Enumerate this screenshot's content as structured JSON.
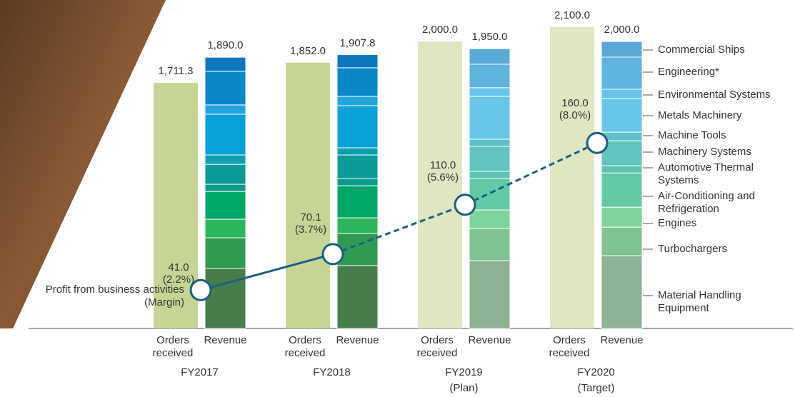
{
  "chart_data": {
    "type": "bar",
    "categories": [
      "FY2017",
      "FY2018",
      "FY2019",
      "FY2020"
    ],
    "category_notes": [
      null,
      null,
      "(Plan)",
      "(Target)"
    ],
    "bar_labels": [
      "Orders received",
      "Revenue"
    ],
    "ylim": [
      0,
      2100
    ],
    "orders": {
      "values": [
        1711.3,
        1852.0,
        2000.0,
        2100.0
      ],
      "value_labels": [
        "1,711.3",
        "1,852.0",
        "2,000.0",
        "2,100.0"
      ],
      "colors": [
        "#c6d596",
        "#c6d596",
        "#dfe7c1",
        "#dfe7c1"
      ]
    },
    "revenue_totals": {
      "values": [
        1890.0,
        1907.8,
        1950.0,
        2000.0
      ],
      "value_labels": [
        "1,890.0",
        "1,907.8",
        "1,950.0",
        "2,000.0"
      ]
    },
    "series": [
      {
        "name": "Material Handling Equipment",
        "colors": [
          "#467d4a",
          "#467d4a",
          "#8db293",
          "#8db293"
        ],
        "values": [
          418,
          438,
          473,
          507
        ]
      },
      {
        "name": "Turbochargers",
        "colors": [
          "#2f9a50",
          "#2f9a50",
          "#80c291",
          "#80c291"
        ],
        "values": [
          214,
          224,
          224,
          199
        ]
      },
      {
        "name": "Engines",
        "colors": [
          "#2db55b",
          "#2db55b",
          "#7dd49c",
          "#7dd49c"
        ],
        "values": [
          129,
          109,
          129,
          139
        ]
      },
      {
        "name": "Air-Conditioning and Refrigeration",
        "colors": [
          "#00a766",
          "#00a766",
          "#62c9a4",
          "#62c9a4"
        ],
        "values": [
          194,
          224,
          219,
          239
        ]
      },
      {
        "name": "Automotive Thermal Systems",
        "colors": [
          "#0c9a8c",
          "#0c9a8c",
          "#5ec3b2",
          "#5ec3b2"
        ],
        "values": [
          50,
          50,
          50,
          50
        ]
      },
      {
        "name": "Machinery Systems",
        "colors": [
          "#0a9a98",
          "#0a9a98",
          "#62c3bf",
          "#62c3bf"
        ],
        "values": [
          139,
          164,
          174,
          174
        ]
      },
      {
        "name": "Machine Tools",
        "colors": [
          "#0aa0ac",
          "#0aa0ac",
          "#5ec0c9",
          "#5ec0c9"
        ],
        "values": [
          65,
          50,
          50,
          60
        ]
      },
      {
        "name": "Metals Machinery",
        "colors": [
          "#0aa0da",
          "#0aa0da",
          "#68c6e9",
          "#68c6e9"
        ],
        "values": [
          284,
          294,
          299,
          234
        ]
      },
      {
        "name": "Environmental Systems",
        "colors": [
          "#22a4de",
          "#22a4de",
          "#66c4ec",
          "#66c4ec"
        ],
        "values": [
          65,
          65,
          60,
          65
        ]
      },
      {
        "name": "Engineering*",
        "colors": [
          "#0a86c9",
          "#0a86c9",
          "#5fb3df",
          "#5fb3df"
        ],
        "values": [
          234,
          199,
          164,
          224
        ]
      },
      {
        "name": "Commercial Ships",
        "colors": [
          "#0a77bf",
          "#0a77bf",
          "#5aa8d8",
          "#5aa8d8"
        ],
        "values": [
          98,
          91,
          108,
          109
        ]
      }
    ],
    "line": {
      "type": "line",
      "name": "Profit from business activities",
      "name_note": "(Margin)",
      "color": "#1d5e84",
      "values": [
        41.0,
        70.1,
        110.0,
        160.0
      ],
      "value_labels": [
        "41.0",
        "70.1",
        "110.0",
        "160.0"
      ],
      "margins": [
        2.2,
        3.7,
        5.6,
        8.0
      ],
      "margin_labels": [
        "(2.2%)",
        "(3.7%)",
        "(5.6%)",
        "(8.0%)"
      ],
      "y2lim": [
        10,
        260
      ],
      "dashed_from": 1
    }
  }
}
